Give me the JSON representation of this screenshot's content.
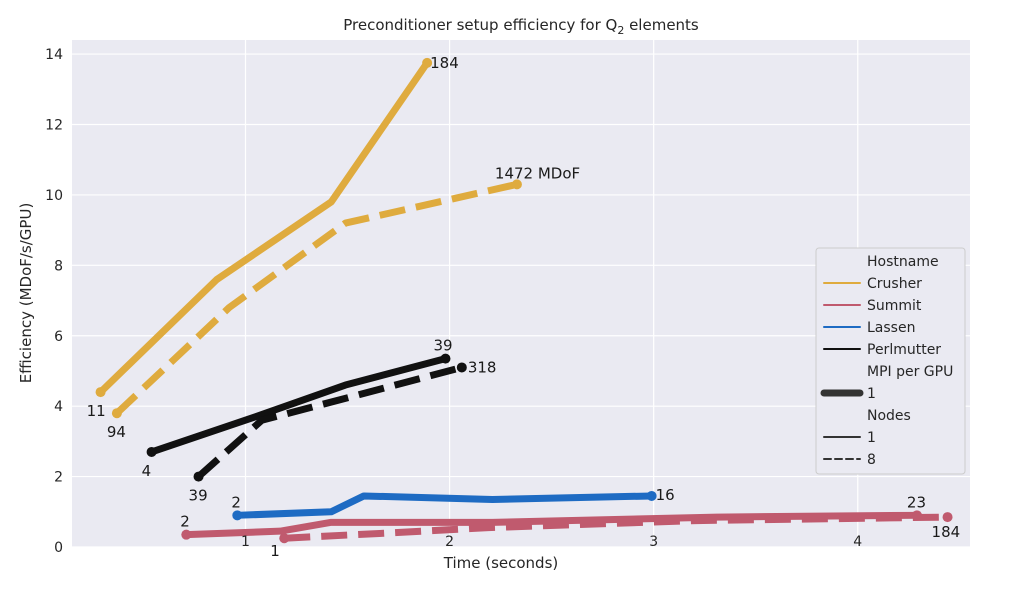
{
  "chart_data": {
    "type": "line",
    "title": "Preconditioner setup efficiency for Q",
    "title_subscript": "2",
    "title_suffix": " elements",
    "xlabel": "Time (seconds)",
    "ylabel": "Efficiency (MDoF/s/GPU)",
    "xlim": [
      0.15,
      4.55
    ],
    "ylim": [
      0,
      14.4
    ],
    "xticks": [
      1,
      2,
      3,
      4
    ],
    "xtick_labels": [
      "1",
      "2",
      "3",
      "4"
    ],
    "yticks": [
      0,
      2,
      4,
      6,
      8,
      10,
      12,
      14
    ],
    "ytick_labels": [
      "0",
      "2",
      "4",
      "6",
      "8",
      "10",
      "12",
      "14"
    ],
    "grid": true,
    "legend_position": "right",
    "colors": {
      "Crusher": "#dfab3e",
      "Summit": "#c05a6e",
      "Lassen": "#1e6bc3",
      "Perlmutter": "#111111",
      "plot_bg": "#eaeaf2",
      "grid": "#ffffff"
    },
    "series": [
      {
        "name": "Crusher",
        "nodes": "1",
        "style": "solid",
        "x": [
          0.29,
          0.86,
          1.42,
          1.89
        ],
        "y": [
          4.4,
          7.6,
          9.8,
          13.75
        ],
        "start_label": "11",
        "end_label": "184"
      },
      {
        "name": "Crusher",
        "nodes": "8",
        "style": "dashed",
        "x": [
          0.37,
          0.92,
          1.49,
          2.33
        ],
        "y": [
          3.8,
          6.8,
          9.2,
          10.3
        ],
        "start_label": "94",
        "end_label": "1472 MDoF"
      },
      {
        "name": "Perlmutter",
        "nodes": "1",
        "style": "solid",
        "x": [
          0.54,
          1.05,
          1.49,
          1.98
        ],
        "y": [
          2.7,
          3.7,
          4.6,
          5.35
        ],
        "start_label": "4",
        "end_label": "39"
      },
      {
        "name": "Perlmutter",
        "nodes": "8",
        "style": "dashed",
        "x": [
          0.77,
          1.08,
          1.54,
          2.06
        ],
        "y": [
          2.0,
          3.6,
          4.3,
          5.1
        ],
        "start_label": "39",
        "end_label": "318"
      },
      {
        "name": "Lassen",
        "nodes": "1",
        "style": "solid",
        "x": [
          0.96,
          1.42,
          1.58,
          2.21,
          2.99
        ],
        "y": [
          0.9,
          1.0,
          1.45,
          1.35,
          1.45
        ],
        "start_label": "2",
        "end_label": "16"
      },
      {
        "name": "Summit",
        "nodes": "1",
        "style": "solid",
        "x": [
          0.71,
          1.17,
          1.42,
          2.21,
          3.31,
          4.29
        ],
        "y": [
          0.35,
          0.45,
          0.7,
          0.7,
          0.85,
          0.9
        ],
        "start_label": "2",
        "end_label": "23"
      },
      {
        "name": "Summit",
        "nodes": "8",
        "style": "dashed",
        "x": [
          1.19,
          1.71,
          2.19,
          3.21,
          4.44
        ],
        "y": [
          0.25,
          0.4,
          0.55,
          0.75,
          0.85
        ],
        "start_label": "1",
        "end_label": "184"
      }
    ],
    "legend": {
      "hostname_title": "Hostname",
      "hostnames": [
        "Crusher",
        "Summit",
        "Lassen",
        "Perlmutter"
      ],
      "mpi_title": "MPI per GPU",
      "mpi_values": [
        "1"
      ],
      "nodes_title": "Nodes",
      "nodes_values": [
        "1",
        "8"
      ]
    }
  }
}
